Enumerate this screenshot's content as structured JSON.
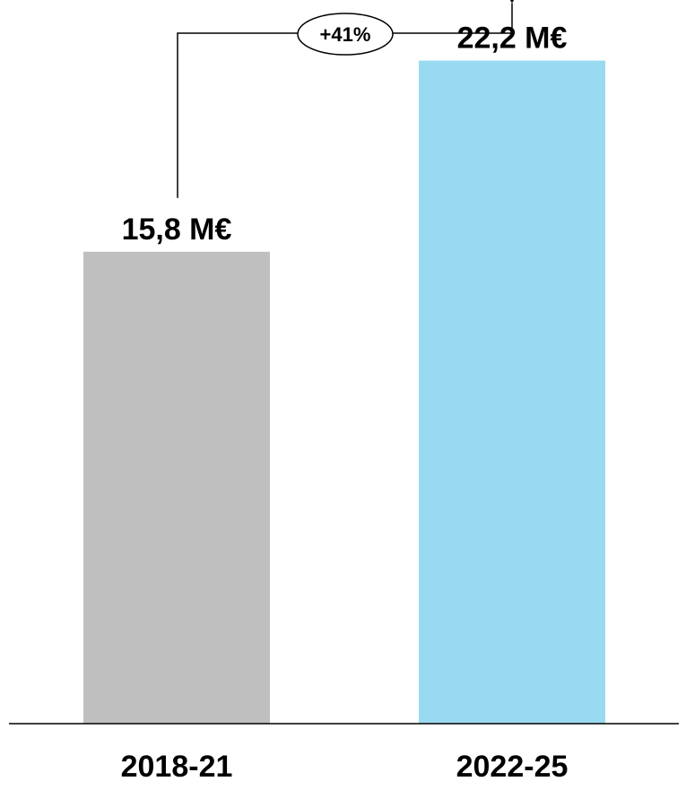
{
  "chart_data": {
    "type": "bar",
    "categories": [
      "2018-21",
      "2022-25"
    ],
    "values": [
      15.8,
      22.2
    ],
    "value_labels": [
      "15,8 M€",
      "22,2 M€"
    ],
    "colors": [
      "#bfbfbf",
      "#99daf0"
    ],
    "ylim": [
      0,
      24.2
    ],
    "annotation": {
      "text": "+41%",
      "from_category": "2018-21",
      "to_category": "2022-25"
    },
    "title": "",
    "xlabel": "",
    "ylabel": "",
    "grid": false
  }
}
